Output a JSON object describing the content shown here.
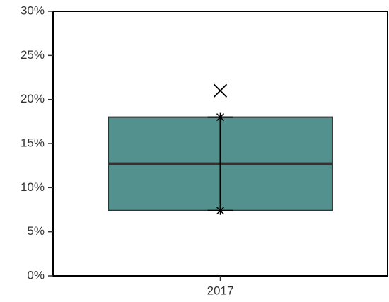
{
  "chart_data": {
    "type": "box",
    "categories": [
      "2017"
    ],
    "series": [
      {
        "color": "#52918d",
        "q1": [
          7.4
        ],
        "median": [
          12.7
        ],
        "q3": [
          18
        ],
        "whisker_low": [
          7.4
        ],
        "whisker_high": [
          18
        ],
        "outliers": [
          [
            21
          ]
        ]
      }
    ],
    "ylim": [
      0,
      30
    ],
    "yticks": [
      {
        "value": 0,
        "label": "0%"
      },
      {
        "value": 5,
        "label": "5%"
      },
      {
        "value": 10,
        "label": "10%"
      },
      {
        "value": 15,
        "label": "15%"
      },
      {
        "value": 20,
        "label": "20%"
      },
      {
        "value": 25,
        "label": "25%"
      },
      {
        "value": 30,
        "label": "30%"
      }
    ]
  }
}
